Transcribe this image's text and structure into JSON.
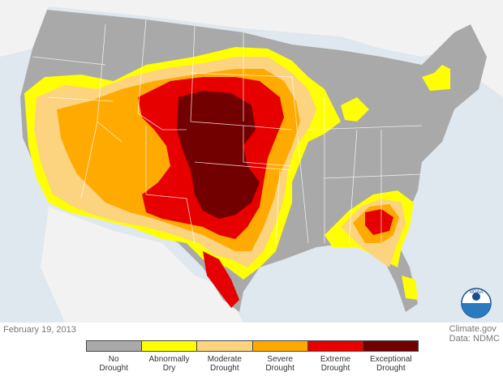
{
  "date": "February 19, 2013",
  "credit": {
    "site": "Climate.gov",
    "source": "Data: NDMC"
  },
  "logo": {
    "text": "NOAA"
  },
  "legend": [
    {
      "line1": "No",
      "line2": "Drought",
      "color": "#a9a9a9"
    },
    {
      "line1": "Abnormally",
      "line2": "Dry",
      "color": "#ffff00"
    },
    {
      "line1": "Moderate",
      "line2": "Drought",
      "color": "#fcd37f"
    },
    {
      "line1": "Severe",
      "line2": "Drought",
      "color": "#ffaa00"
    },
    {
      "line1": "Extreme",
      "line2": "Drought",
      "color": "#e60000"
    },
    {
      "line1": "Exceptional",
      "line2": "Drought",
      "color": "#730000"
    }
  ],
  "colors": {
    "water": "#dfe8ee",
    "foreign_land": "#f2f2f2",
    "state_border": "#ffffff"
  }
}
